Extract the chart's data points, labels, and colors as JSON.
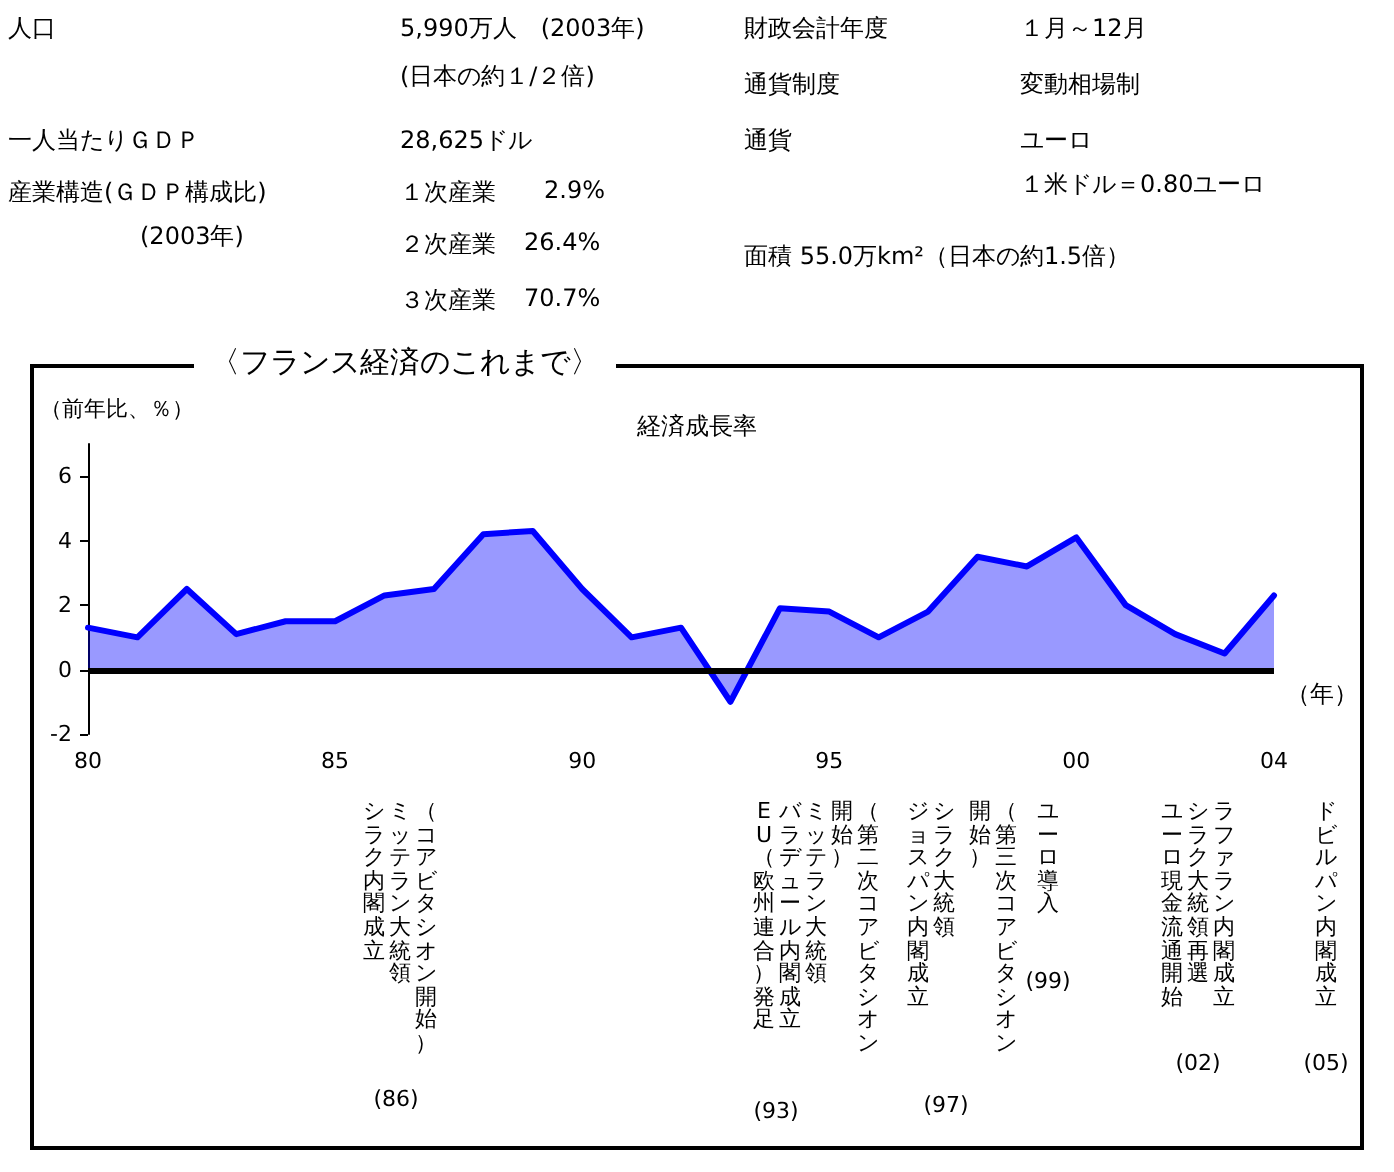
{
  "chart_data": [
    {
      "type": "other",
      "annotations": [
        "人口",
        "5,990万人　(2003年)",
        "(日本の約１/２倍)",
        "一人当たりＧＤＰ",
        "28,625ドル",
        "産業構造(ＧＤＰ構成比)",
        "(2003年)",
        "１次産業",
        "2.9%",
        "２次産業",
        "26.4%",
        "３次産業",
        "70.7%",
        "財政会計年度",
        "１月～12月",
        "通貨制度",
        "変動相場制",
        "通貨",
        "ユーロ",
        "１米ドル＝0.80ユーロ",
        "面積 55.0万km²（日本の約1.5倍）"
      ]
    },
    {
      "type": "area",
      "title": "〈フランス経済のこれまで〉",
      "subtitle": "経済成長率",
      "ylabel": "（前年比、％）",
      "xlabel": "（年）",
      "x": [
        1980,
        1981,
        1982,
        1983,
        1984,
        1985,
        1986,
        1987,
        1988,
        1989,
        1990,
        1991,
        1992,
        1993,
        1994,
        1995,
        1996,
        1997,
        1998,
        1999,
        2000,
        2001,
        2002,
        2003,
        2004
      ],
      "series": [
        {
          "color": "#0000ff",
          "values": [
            1.3,
            1.0,
            2.5,
            1.1,
            1.5,
            1.5,
            2.3,
            2.5,
            4.2,
            4.3,
            2.5,
            1.0,
            1.3,
            -1.0,
            1.9,
            1.8,
            1.0,
            1.8,
            3.5,
            3.2,
            4.1,
            2.0,
            1.1,
            0.5,
            2.3
          ]
        }
      ],
      "xlim": [
        1980,
        2004
      ],
      "xticks": [
        {
          "value": 1980,
          "label": "80"
        },
        {
          "value": 1985,
          "label": "85"
        },
        {
          "value": 1990,
          "label": "90"
        },
        {
          "value": 1995,
          "label": "95"
        },
        {
          "value": 2000,
          "label": "00"
        },
        {
          "value": 2004,
          "label": "04"
        }
      ],
      "ylim": [
        -2,
        7
      ],
      "yticks": [
        -2,
        0,
        2,
        4,
        6
      ],
      "ref_lines": [
        {
          "axis": "y",
          "value": 0,
          "color": "#000000"
        }
      ],
      "marker": "none",
      "line_style": "solid",
      "grid": false,
      "annotations": [
        "（コアビタシオン開始）",
        "ミッテラン大統領",
        "シラク内閣成立",
        "(86)",
        "（第二次コアビタシオン",
        "開始）",
        "ミッテラン大統領",
        "バラデュール内閣成立",
        "EU（欧州連合）発足",
        "(93)",
        "（第三次コアビタシオン",
        "開始）",
        "シラク大統領",
        "ジョスパン内閣成立",
        "(97)",
        "ユーロ導入",
        "(99)",
        "ラファラン内閣成立",
        "シラク大統領再選",
        "ユーロ現金流通開始",
        "(02)",
        "ドビルパン内閣成立",
        "(05)"
      ]
    }
  ]
}
